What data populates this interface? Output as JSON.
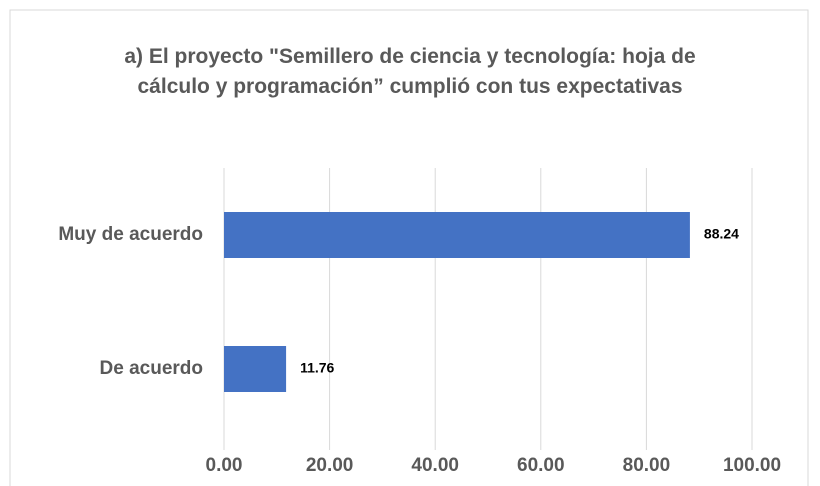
{
  "chart_data": {
    "type": "bar",
    "orientation": "horizontal",
    "title": "a) El proyecto \"Semillero de ciencia y tecnología: hoja de cálculo y programación” cumplió con tus expectativas",
    "categories": [
      "Muy de acuerdo",
      "De acuerdo"
    ],
    "values": [
      88.24,
      11.76
    ],
    "color": "#4472c4",
    "xlim": [
      0,
      100
    ],
    "xticks": [
      {
        "value": 0,
        "label": "0.00"
      },
      {
        "value": 20,
        "label": "20.00"
      },
      {
        "value": 40,
        "label": "40.00"
      },
      {
        "value": 60,
        "label": "60.00"
      },
      {
        "value": 80,
        "label": "80.00"
      },
      {
        "value": 100,
        "label": "100.00"
      }
    ],
    "grid": true
  }
}
